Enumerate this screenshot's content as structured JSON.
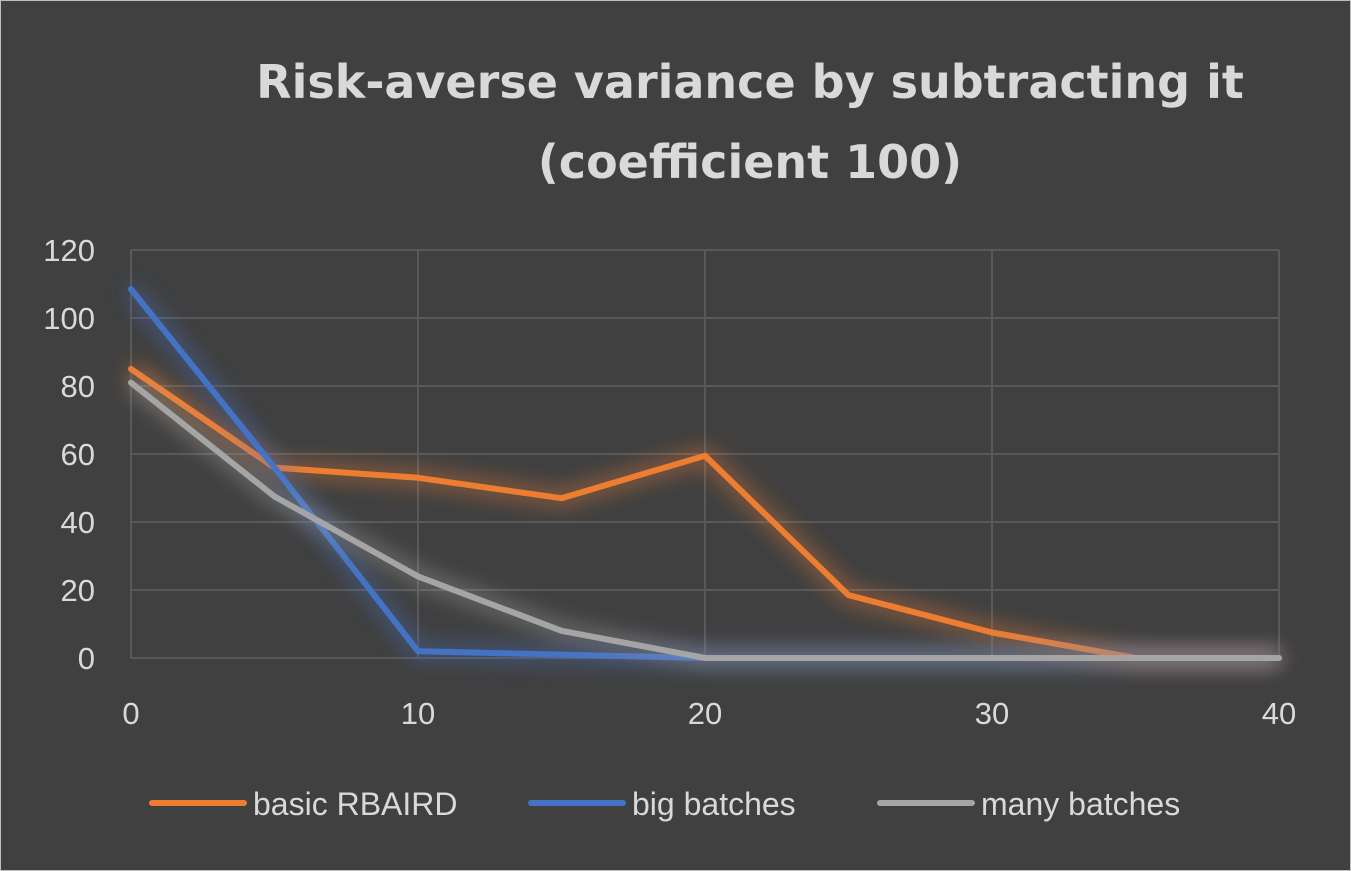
{
  "chart_data": {
    "type": "line",
    "title_lines": [
      "Risk-averse variance by subtracting it",
      "(coefficient 100)"
    ],
    "xlabel": "",
    "ylabel": "",
    "xlim": [
      0,
      40
    ],
    "ylim": [
      0,
      120
    ],
    "x_ticks": [
      0,
      10,
      20,
      30,
      40
    ],
    "y_ticks": [
      0,
      20,
      40,
      60,
      80,
      100,
      120
    ],
    "grid": true,
    "legend_position": "bottom",
    "series": [
      {
        "name": "basic RBAIRD",
        "color": "#ed7d31",
        "x": [
          0,
          5,
          10,
          15,
          20,
          25,
          30,
          35,
          40
        ],
        "y": [
          85,
          56,
          53,
          47,
          59.5,
          18.5,
          7.5,
          0,
          0
        ]
      },
      {
        "name": "big batches",
        "color": "#4472c4",
        "x": [
          0,
          5,
          10,
          15,
          20,
          25,
          30,
          35,
          40
        ],
        "y": [
          108.5,
          56,
          2,
          1,
          0,
          0,
          0,
          0,
          0
        ]
      },
      {
        "name": "many batches",
        "color": "#a5a5a5",
        "x": [
          0,
          5,
          10,
          15,
          20,
          25,
          30,
          35,
          40
        ],
        "y": [
          81,
          47.5,
          24,
          8,
          0,
          0,
          0,
          0,
          0
        ]
      }
    ]
  }
}
